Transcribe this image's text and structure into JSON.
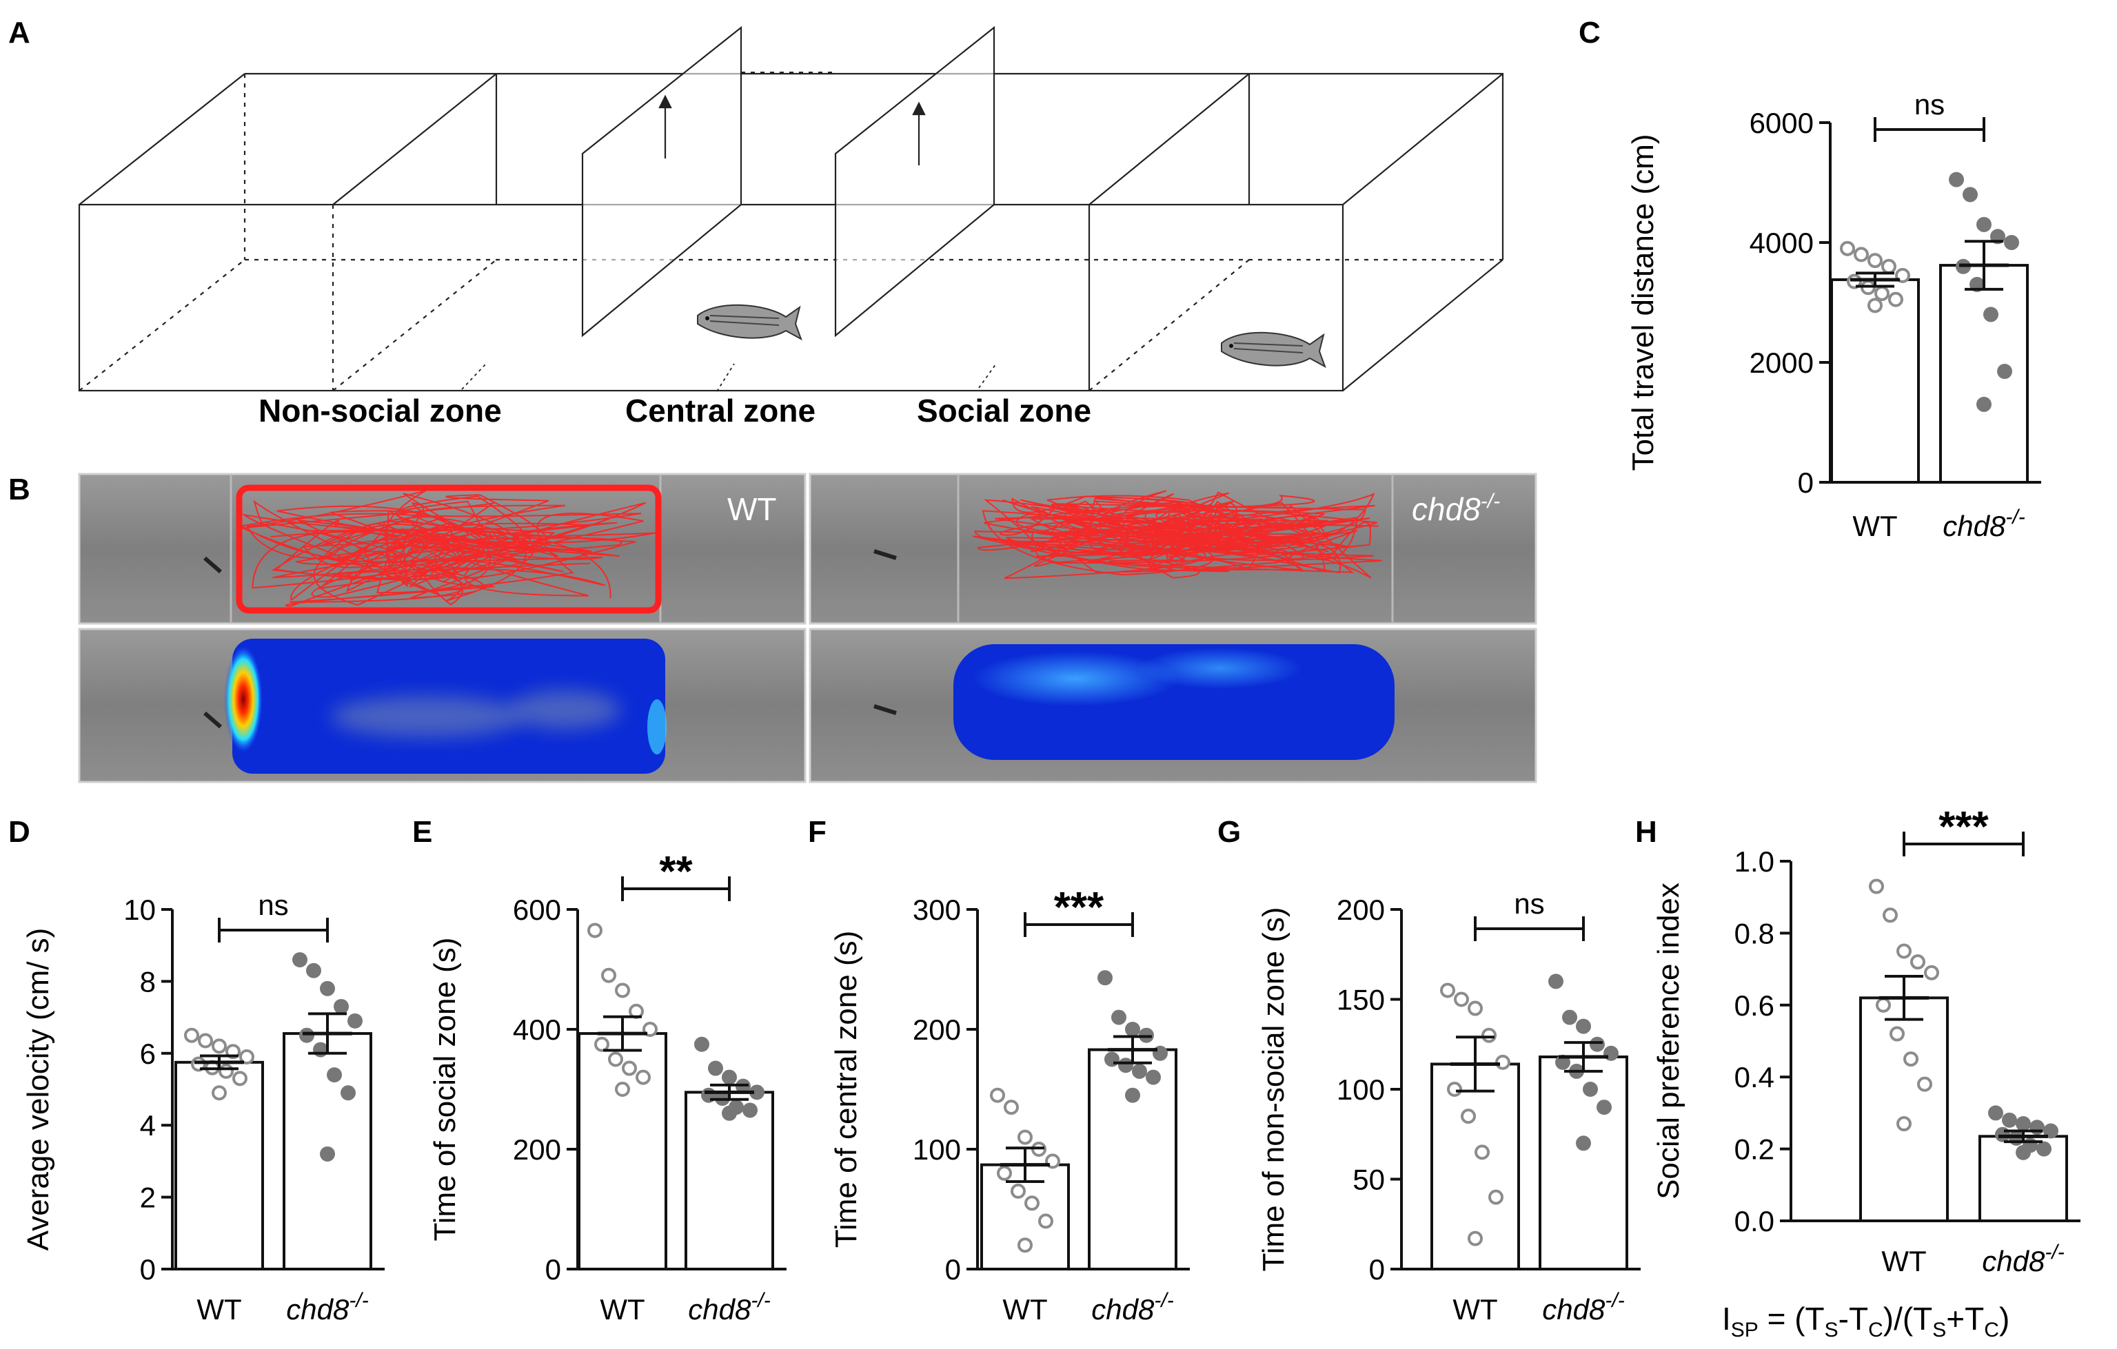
{
  "figure": {
    "panel_letters": [
      "A",
      "B",
      "C",
      "D",
      "E",
      "F",
      "G",
      "H"
    ],
    "panel_a": {
      "zone_labels": [
        "Non-social zone",
        "Central zone",
        "Social zone"
      ]
    },
    "panel_b": {
      "labels": [
        "WT",
        "chd8"
      ],
      "label_superscript": "-/-",
      "description_colors": {
        "track": "#ff2020",
        "heat_low": "#0a2bd6",
        "heat_high": "#ff2a00"
      }
    },
    "formula": {
      "lhs": "I",
      "lhs_sub": "SP",
      "eq": " = (T",
      "s1": "S",
      "mid1": "-T",
      "s2": "C",
      "mid2": ")/(T",
      "s3": "S",
      "mid3": "+T",
      "s4": "C",
      "end": ")"
    }
  },
  "chart_data": [
    {
      "panel": "C",
      "type": "bar",
      "ylabel": "Total travel distance (cm)",
      "ylim": [
        0,
        6000
      ],
      "yticks": [
        "0",
        "2000",
        "4000",
        "6000"
      ],
      "ytick_values": [
        0,
        2000,
        4000,
        6000
      ],
      "categories": [
        "WT",
        "chd8"
      ],
      "category_superscript": [
        "",
        "-/-"
      ],
      "means": [
        3380,
        3620
      ],
      "sem": [
        110,
        400
      ],
      "points": [
        [
          3900,
          3800,
          3700,
          3600,
          3450,
          3350,
          3250,
          3150,
          3050,
          2950
        ],
        [
          5050,
          4800,
          4300,
          4100,
          4000,
          3600,
          3300,
          2800,
          1850,
          1300
        ]
      ],
      "significance": "ns"
    },
    {
      "panel": "D",
      "type": "bar",
      "ylabel": "Average velocity (cm/ s)",
      "ylim": [
        0,
        10
      ],
      "yticks": [
        "0",
        "2",
        "4",
        "6",
        "8",
        "10"
      ],
      "ytick_values": [
        0,
        2,
        4,
        6,
        8,
        10
      ],
      "categories": [
        "WT",
        "chd8"
      ],
      "category_superscript": [
        "",
        "-/-"
      ],
      "means": [
        5.75,
        6.55
      ],
      "sem": [
        0.18,
        0.55
      ],
      "points": [
        [
          6.5,
          6.35,
          6.2,
          6.05,
          5.9,
          5.7,
          5.6,
          5.5,
          5.3,
          4.9
        ],
        [
          8.6,
          8.3,
          7.8,
          7.3,
          6.9,
          6.5,
          6.1,
          5.4,
          4.9,
          3.2
        ]
      ],
      "significance": "ns"
    },
    {
      "panel": "E",
      "type": "bar",
      "ylabel": "Time of social zone (s)",
      "ylim": [
        0,
        600
      ],
      "yticks": [
        "0",
        "200",
        "400",
        "600"
      ],
      "ytick_values": [
        0,
        200,
        400,
        600
      ],
      "categories": [
        "WT",
        "chd8"
      ],
      "category_superscript": [
        "",
        "-/-"
      ],
      "means": [
        393,
        295
      ],
      "sem": [
        28,
        12
      ],
      "points": [
        [
          565,
          490,
          465,
          430,
          400,
          375,
          350,
          335,
          320,
          300
        ],
        [
          375,
          335,
          320,
          305,
          295,
          290,
          285,
          270,
          265,
          260
        ]
      ],
      "significance": "**"
    },
    {
      "panel": "F",
      "type": "bar",
      "ylabel": "Time of central zone (s)",
      "ylim": [
        0,
        300
      ],
      "yticks": [
        "0",
        "100",
        "200",
        "300"
      ],
      "ytick_values": [
        0,
        100,
        200,
        300
      ],
      "categories": [
        "WT",
        "chd8"
      ],
      "category_superscript": [
        "",
        "-/-"
      ],
      "means": [
        87,
        183
      ],
      "sem": [
        14,
        11
      ],
      "points": [
        [
          145,
          135,
          110,
          100,
          90,
          80,
          65,
          55,
          40,
          20
        ],
        [
          243,
          210,
          200,
          195,
          180,
          175,
          170,
          165,
          160,
          145
        ]
      ],
      "significance": "***"
    },
    {
      "panel": "G",
      "type": "bar",
      "ylabel": "Time of non-social zone (s)",
      "ylim": [
        0,
        200
      ],
      "yticks": [
        "0",
        "50",
        "100",
        "150",
        "200"
      ],
      "ytick_values": [
        0,
        50,
        100,
        150,
        200
      ],
      "categories": [
        "WT",
        "chd8"
      ],
      "category_superscript": [
        "",
        "-/-"
      ],
      "means": [
        114,
        118
      ],
      "sem": [
        15,
        8
      ],
      "points": [
        [
          155,
          150,
          145,
          130,
          115,
          100,
          85,
          65,
          40,
          17
        ],
        [
          160,
          140,
          135,
          125,
          120,
          115,
          110,
          100,
          90,
          70
        ]
      ],
      "significance": "ns"
    },
    {
      "panel": "H",
      "type": "bar",
      "ylabel": "Social preference index",
      "ylim": [
        0,
        1.0
      ],
      "yticks": [
        "0.0",
        "0.2",
        "0.4",
        "0.6",
        "0.8",
        "1.0"
      ],
      "ytick_values": [
        0,
        0.2,
        0.4,
        0.6,
        0.8,
        1.0
      ],
      "categories": [
        "WT",
        "chd8"
      ],
      "category_superscript": [
        "",
        "-/-"
      ],
      "means": [
        0.62,
        0.235
      ],
      "sem": [
        0.06,
        0.015
      ],
      "points": [
        [
          0.93,
          0.85,
          0.75,
          0.72,
          0.69,
          0.6,
          0.52,
          0.45,
          0.38,
          0.27
        ],
        [
          0.3,
          0.28,
          0.27,
          0.26,
          0.25,
          0.24,
          0.23,
          0.21,
          0.2,
          0.19
        ]
      ],
      "significance": "***"
    }
  ]
}
